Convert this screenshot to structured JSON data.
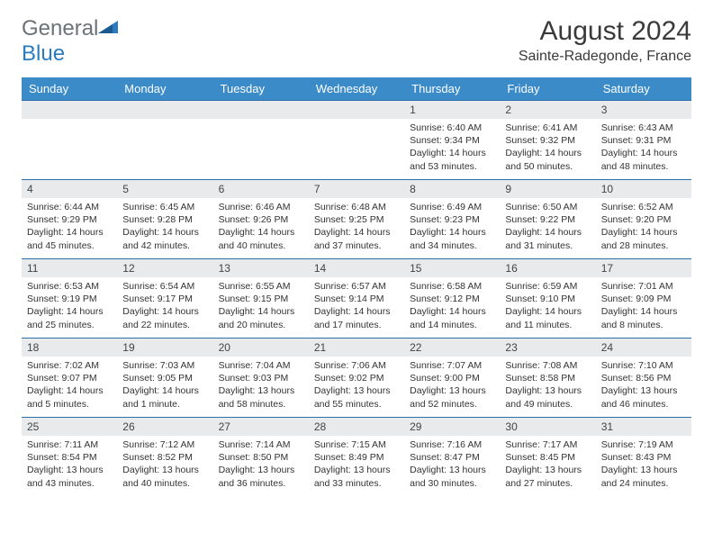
{
  "logo": {
    "text_gray": "General",
    "text_blue": "Blue"
  },
  "title": "August 2024",
  "location": "Sainte-Radegonde, France",
  "colors": {
    "header_bg": "#3b8bc9",
    "header_text": "#ffffff",
    "day_number_bg": "#e8eaec",
    "border": "#2f6fa8",
    "logo_gray": "#6b7278",
    "logo_blue": "#2b7bbf"
  },
  "day_names": [
    "Sunday",
    "Monday",
    "Tuesday",
    "Wednesday",
    "Thursday",
    "Friday",
    "Saturday"
  ],
  "weeks": [
    [
      null,
      null,
      null,
      null,
      {
        "n": "1",
        "sunrise": "6:40 AM",
        "sunset": "9:34 PM",
        "daylight": "14 hours and 53 minutes."
      },
      {
        "n": "2",
        "sunrise": "6:41 AM",
        "sunset": "9:32 PM",
        "daylight": "14 hours and 50 minutes."
      },
      {
        "n": "3",
        "sunrise": "6:43 AM",
        "sunset": "9:31 PM",
        "daylight": "14 hours and 48 minutes."
      }
    ],
    [
      {
        "n": "4",
        "sunrise": "6:44 AM",
        "sunset": "9:29 PM",
        "daylight": "14 hours and 45 minutes."
      },
      {
        "n": "5",
        "sunrise": "6:45 AM",
        "sunset": "9:28 PM",
        "daylight": "14 hours and 42 minutes."
      },
      {
        "n": "6",
        "sunrise": "6:46 AM",
        "sunset": "9:26 PM",
        "daylight": "14 hours and 40 minutes."
      },
      {
        "n": "7",
        "sunrise": "6:48 AM",
        "sunset": "9:25 PM",
        "daylight": "14 hours and 37 minutes."
      },
      {
        "n": "8",
        "sunrise": "6:49 AM",
        "sunset": "9:23 PM",
        "daylight": "14 hours and 34 minutes."
      },
      {
        "n": "9",
        "sunrise": "6:50 AM",
        "sunset": "9:22 PM",
        "daylight": "14 hours and 31 minutes."
      },
      {
        "n": "10",
        "sunrise": "6:52 AM",
        "sunset": "9:20 PM",
        "daylight": "14 hours and 28 minutes."
      }
    ],
    [
      {
        "n": "11",
        "sunrise": "6:53 AM",
        "sunset": "9:19 PM",
        "daylight": "14 hours and 25 minutes."
      },
      {
        "n": "12",
        "sunrise": "6:54 AM",
        "sunset": "9:17 PM",
        "daylight": "14 hours and 22 minutes."
      },
      {
        "n": "13",
        "sunrise": "6:55 AM",
        "sunset": "9:15 PM",
        "daylight": "14 hours and 20 minutes."
      },
      {
        "n": "14",
        "sunrise": "6:57 AM",
        "sunset": "9:14 PM",
        "daylight": "14 hours and 17 minutes."
      },
      {
        "n": "15",
        "sunrise": "6:58 AM",
        "sunset": "9:12 PM",
        "daylight": "14 hours and 14 minutes."
      },
      {
        "n": "16",
        "sunrise": "6:59 AM",
        "sunset": "9:10 PM",
        "daylight": "14 hours and 11 minutes."
      },
      {
        "n": "17",
        "sunrise": "7:01 AM",
        "sunset": "9:09 PM",
        "daylight": "14 hours and 8 minutes."
      }
    ],
    [
      {
        "n": "18",
        "sunrise": "7:02 AM",
        "sunset": "9:07 PM",
        "daylight": "14 hours and 5 minutes."
      },
      {
        "n": "19",
        "sunrise": "7:03 AM",
        "sunset": "9:05 PM",
        "daylight": "14 hours and 1 minute."
      },
      {
        "n": "20",
        "sunrise": "7:04 AM",
        "sunset": "9:03 PM",
        "daylight": "13 hours and 58 minutes."
      },
      {
        "n": "21",
        "sunrise": "7:06 AM",
        "sunset": "9:02 PM",
        "daylight": "13 hours and 55 minutes."
      },
      {
        "n": "22",
        "sunrise": "7:07 AM",
        "sunset": "9:00 PM",
        "daylight": "13 hours and 52 minutes."
      },
      {
        "n": "23",
        "sunrise": "7:08 AM",
        "sunset": "8:58 PM",
        "daylight": "13 hours and 49 minutes."
      },
      {
        "n": "24",
        "sunrise": "7:10 AM",
        "sunset": "8:56 PM",
        "daylight": "13 hours and 46 minutes."
      }
    ],
    [
      {
        "n": "25",
        "sunrise": "7:11 AM",
        "sunset": "8:54 PM",
        "daylight": "13 hours and 43 minutes."
      },
      {
        "n": "26",
        "sunrise": "7:12 AM",
        "sunset": "8:52 PM",
        "daylight": "13 hours and 40 minutes."
      },
      {
        "n": "27",
        "sunrise": "7:14 AM",
        "sunset": "8:50 PM",
        "daylight": "13 hours and 36 minutes."
      },
      {
        "n": "28",
        "sunrise": "7:15 AM",
        "sunset": "8:49 PM",
        "daylight": "13 hours and 33 minutes."
      },
      {
        "n": "29",
        "sunrise": "7:16 AM",
        "sunset": "8:47 PM",
        "daylight": "13 hours and 30 minutes."
      },
      {
        "n": "30",
        "sunrise": "7:17 AM",
        "sunset": "8:45 PM",
        "daylight": "13 hours and 27 minutes."
      },
      {
        "n": "31",
        "sunrise": "7:19 AM",
        "sunset": "8:43 PM",
        "daylight": "13 hours and 24 minutes."
      }
    ]
  ],
  "labels": {
    "sunrise": "Sunrise:",
    "sunset": "Sunset:",
    "daylight": "Daylight:"
  }
}
